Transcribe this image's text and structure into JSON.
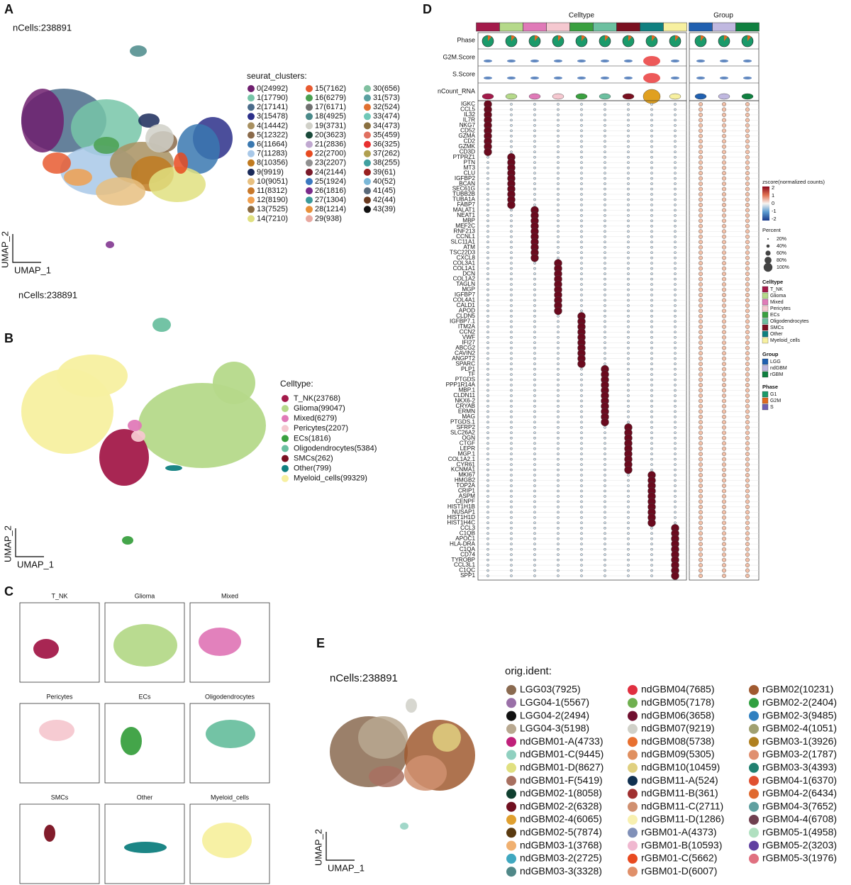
{
  "A": {
    "label": "A",
    "ncells": "nCells:238891",
    "y_axis": "UMAP_2",
    "x_axis": "UMAP_1",
    "legend_title": "seurat_clusters:",
    "items": [
      {
        "label": "0(24992)",
        "color": "#6f1f6f"
      },
      {
        "label": "1(17790)",
        "color": "#77c5a8"
      },
      {
        "label": "2(17141)",
        "color": "#4a6b8a"
      },
      {
        "label": "3(15478)",
        "color": "#2b2f8a"
      },
      {
        "label": "4(14442)",
        "color": "#a89060"
      },
      {
        "label": "5(12322)",
        "color": "#8a6a4a"
      },
      {
        "label": "6(11664)",
        "color": "#3a78b0"
      },
      {
        "label": "7(11283)",
        "color": "#a8c8e8"
      },
      {
        "label": "8(10356)",
        "color": "#c07a20"
      },
      {
        "label": "9(9919)",
        "color": "#1a2a5a"
      },
      {
        "label": "10(9051)",
        "color": "#e8c080"
      },
      {
        "label": "11(8312)",
        "color": "#c8782a"
      },
      {
        "label": "12(8190)",
        "color": "#f0a050"
      },
      {
        "label": "13(7525)",
        "color": "#8a6a40"
      },
      {
        "label": "14(7210)",
        "color": "#e0e080"
      },
      {
        "label": "15(7162)",
        "color": "#e85a30"
      },
      {
        "label": "16(6279)",
        "color": "#4aa050"
      },
      {
        "label": "17(6171)",
        "color": "#707070"
      },
      {
        "label": "18(4925)",
        "color": "#4a8a8a"
      },
      {
        "label": "19(3731)",
        "color": "#d0d0c8"
      },
      {
        "label": "20(3623)",
        "color": "#1a4a3a"
      },
      {
        "label": "21(2836)",
        "color": "#c0a8d0"
      },
      {
        "label": "22(2700)",
        "color": "#e84a20"
      },
      {
        "label": "23(2207)",
        "color": "#909090"
      },
      {
        "label": "24(2144)",
        "color": "#7a1a2a"
      },
      {
        "label": "25(1924)",
        "color": "#3a78c0"
      },
      {
        "label": "26(1816)",
        "color": "#7a2a8a"
      },
      {
        "label": "27(1304)",
        "color": "#3a9a9a"
      },
      {
        "label": "28(1214)",
        "color": "#e8903a"
      },
      {
        "label": "29(938)",
        "color": "#e8a8a0"
      },
      {
        "label": "30(656)",
        "color": "#80c0a0"
      },
      {
        "label": "31(573)",
        "color": "#5aa0a0"
      },
      {
        "label": "32(524)",
        "color": "#e07030"
      },
      {
        "label": "33(474)",
        "color": "#70c8b8"
      },
      {
        "label": "34(473)",
        "color": "#8a7040"
      },
      {
        "label": "35(459)",
        "color": "#e07060"
      },
      {
        "label": "36(325)",
        "color": "#e83030"
      },
      {
        "label": "37(262)",
        "color": "#b0a050"
      },
      {
        "label": "38(255)",
        "color": "#40a0a0"
      },
      {
        "label": "39(61)",
        "color": "#9a2020"
      },
      {
        "label": "40(52)",
        "color": "#7ab8d8"
      },
      {
        "label": "41(45)",
        "color": "#5a6a7a"
      },
      {
        "label": "42(44)",
        "color": "#6a3a20"
      },
      {
        "label": "43(39)",
        "color": "#111111"
      }
    ]
  },
  "B": {
    "label": "B",
    "ncells": "nCells:238891",
    "y_axis": "UMAP_2",
    "x_axis": "UMAP_1",
    "legend_title": "Celltype:",
    "items": [
      {
        "label": "T_NK(23768)",
        "color": "#a31a4a"
      },
      {
        "label": "Glioma(99047)",
        "color": "#b5d98a"
      },
      {
        "label": "Mixed(6279)",
        "color": "#e07ab8"
      },
      {
        "label": "Pericytes(2207)",
        "color": "#f5c8d0"
      },
      {
        "label": "ECs(1816)",
        "color": "#3aa040"
      },
      {
        "label": "Oligodendrocytes(5384)",
        "color": "#6cc0a0"
      },
      {
        "label": "SMCs(262)",
        "color": "#7a1020"
      },
      {
        "label": "Other(799)",
        "color": "#108080"
      },
      {
        "label": "Myeloid_cells(99329)",
        "color": "#f7f0a0"
      }
    ]
  },
  "C": {
    "label": "C",
    "facets": [
      "T_NK",
      "Glioma",
      "Mixed",
      "Pericytes",
      "ECs",
      "Oligodendrocytes",
      "SMCs",
      "Other",
      "Myeloid_cells"
    ]
  },
  "D": {
    "label": "D",
    "celltype_header": "Celltype",
    "group_header": "Group",
    "rows": [
      "Phase",
      "G2M.Score",
      "S.Score",
      "nCount_RNA"
    ],
    "celltypes": [
      "T_NK",
      "Glioma",
      "Mixed",
      "Pericytes",
      "ECs",
      "Oligodendrocytes",
      "SMCs",
      "Other",
      "Myeloid_cells"
    ],
    "celltype_colors": [
      "#a31a4a",
      "#b5d98a",
      "#e07ab8",
      "#f5c8d0",
      "#3aa040",
      "#6cc0a0",
      "#7a1020",
      "#108080",
      "#f7f0a0"
    ],
    "groups": [
      "LGG",
      "ndGBM",
      "rGBM"
    ],
    "group_colors": [
      "#2060b0",
      "#c0b8e0",
      "#108040"
    ],
    "phases": [
      "G1",
      "G2M",
      "S"
    ],
    "phase_colors": [
      "#1a9a6a",
      "#e06a20",
      "#7060b0"
    ],
    "zscore_title": "zscore(normalized counts)",
    "zscore_ticks": [
      "2",
      "1",
      "0",
      "-1",
      "-2"
    ],
    "percent_title": "Percent",
    "percent_ticks": [
      "20%",
      "40%",
      "60%",
      "80%",
      "100%"
    ],
    "celltype_legend": "Celltype",
    "group_legend": "Group",
    "phase_legend": "Phase",
    "genes": [
      {
        "label": "IGKC",
        "top": 0
      },
      {
        "label": "CCL5",
        "top": 0
      },
      {
        "label": "IL32",
        "top": 0
      },
      {
        "label": "IL7R",
        "top": 0
      },
      {
        "label": "NKG7",
        "top": 0
      },
      {
        "label": "CD52",
        "top": 0
      },
      {
        "label": "GZMA",
        "top": 0
      },
      {
        "label": "CD2",
        "top": 0
      },
      {
        "label": "GZMK",
        "top": 0
      },
      {
        "label": "CD3D",
        "top": 0
      },
      {
        "label": "PTPRZ1",
        "top": 1
      },
      {
        "label": "PTN",
        "top": 1
      },
      {
        "label": "MT3",
        "top": 1
      },
      {
        "label": "CLU",
        "top": 1
      },
      {
        "label": "IGFBP2",
        "top": 1
      },
      {
        "label": "BCAN",
        "top": 1
      },
      {
        "label": "SEC61G",
        "top": 1
      },
      {
        "label": "TUBB2B",
        "top": 1
      },
      {
        "label": "TUBA1A",
        "top": 1
      },
      {
        "label": "FABP7",
        "top": 1
      },
      {
        "label": "MALAT1",
        "top": 2
      },
      {
        "label": "NEAT1",
        "top": 2
      },
      {
        "label": "MBP",
        "top": 2
      },
      {
        "label": "MEF2C",
        "top": 2
      },
      {
        "label": "RNF213",
        "top": 2
      },
      {
        "label": "CCNL1",
        "top": 2
      },
      {
        "label": "SLC11A1",
        "top": 2
      },
      {
        "label": "ATM",
        "top": 2
      },
      {
        "label": "TSC22D3",
        "top": 2
      },
      {
        "label": "CXCL8",
        "top": 2
      },
      {
        "label": "COL3A1",
        "top": 3
      },
      {
        "label": "COL1A1",
        "top": 3
      },
      {
        "label": "DCN",
        "top": 3
      },
      {
        "label": "COL1A2",
        "top": 3
      },
      {
        "label": "TAGLN",
        "top": 3
      },
      {
        "label": "MGP",
        "top": 3
      },
      {
        "label": "IGFBP7",
        "top": 3
      },
      {
        "label": "COL4A1",
        "top": 3
      },
      {
        "label": "CALD1",
        "top": 3
      },
      {
        "label": "APOD",
        "top": 3
      },
      {
        "label": "CLDN5",
        "top": 4
      },
      {
        "label": "IGFBP7.1",
        "top": 4
      },
      {
        "label": "ITM2A",
        "top": 4
      },
      {
        "label": "CCN2",
        "top": 4
      },
      {
        "label": "VWF",
        "top": 4
      },
      {
        "label": "IFI27",
        "top": 4
      },
      {
        "label": "ABCG2",
        "top": 4
      },
      {
        "label": "CAVIN2",
        "top": 4
      },
      {
        "label": "ANGPT2",
        "top": 4
      },
      {
        "label": "SPARC",
        "top": 4
      },
      {
        "label": "PLP1",
        "top": 5
      },
      {
        "label": "TF",
        "top": 5
      },
      {
        "label": "PTGDS",
        "top": 5
      },
      {
        "label": "PPP1R14A",
        "top": 5
      },
      {
        "label": "MBP.1",
        "top": 5
      },
      {
        "label": "CLDN11",
        "top": 5
      },
      {
        "label": "NKX6-2",
        "top": 5
      },
      {
        "label": "CRYAB",
        "top": 5
      },
      {
        "label": "ERMN",
        "top": 5
      },
      {
        "label": "MAG",
        "top": 5
      },
      {
        "label": "PTGDS.1",
        "top": 5
      },
      {
        "label": "SFRP2",
        "top": 6
      },
      {
        "label": "SLC26A2",
        "top": 6
      },
      {
        "label": "OGN",
        "top": 6
      },
      {
        "label": "CTGF",
        "top": 6
      },
      {
        "label": "LEPR",
        "top": 6
      },
      {
        "label": "MGP.1",
        "top": 6
      },
      {
        "label": "COL1A2.1",
        "top": 6
      },
      {
        "label": "CYR61",
        "top": 6
      },
      {
        "label": "KCNMA1",
        "top": 6
      },
      {
        "label": "MKI67",
        "top": 7
      },
      {
        "label": "HMGB2",
        "top": 7
      },
      {
        "label": "TOP2A",
        "top": 7
      },
      {
        "label": "CRIP1",
        "top": 7
      },
      {
        "label": "ASPM",
        "top": 7
      },
      {
        "label": "CENPF",
        "top": 7
      },
      {
        "label": "HIST1H1B",
        "top": 7
      },
      {
        "label": "NUSAP1",
        "top": 7
      },
      {
        "label": "HIST1H1D",
        "top": 7
      },
      {
        "label": "HIST1H4C",
        "top": 7
      },
      {
        "label": "CCL3",
        "top": 8
      },
      {
        "label": "C1QB",
        "top": 8
      },
      {
        "label": "APOC1",
        "top": 8
      },
      {
        "label": "HLA-DRA",
        "top": 8
      },
      {
        "label": "C1QA",
        "top": 8
      },
      {
        "label": "CD74",
        "top": 8
      },
      {
        "label": "TYROBP",
        "top": 8
      },
      {
        "label": "CCL3L1",
        "top": 8
      },
      {
        "label": "C1QC",
        "top": 8
      },
      {
        "label": "SPP1",
        "top": 8
      }
    ]
  },
  "E": {
    "label": "E",
    "ncells": "nCells:238891",
    "y_axis": "UMAP_2",
    "x_axis": "UMAP_1",
    "legend_title": "orig.ident:",
    "items": [
      {
        "label": "LGG03(7925)",
        "color": "#8a6a50"
      },
      {
        "label": "LGG04-1(5567)",
        "color": "#9a70a8"
      },
      {
        "label": "LGG04-2(2494)",
        "color": "#111111"
      },
      {
        "label": "LGG04-3(5198)",
        "color": "#b8a890"
      },
      {
        "label": "ndGBM01-A(4733)",
        "color": "#c0207a"
      },
      {
        "label": "ndGBM01-C(9445)",
        "color": "#90d0c0"
      },
      {
        "label": "ndGBM01-D(8627)",
        "color": "#e0e080"
      },
      {
        "label": "ndGBM01-F(5419)",
        "color": "#a87060"
      },
      {
        "label": "ndGBM02-1(8058)",
        "color": "#104030"
      },
      {
        "label": "ndGBM02-2(6328)",
        "color": "#701020"
      },
      {
        "label": "ndGBM02-4(6065)",
        "color": "#e0a030"
      },
      {
        "label": "ndGBM02-5(7874)",
        "color": "#5a3a10"
      },
      {
        "label": "ndGBM03-1(3768)",
        "color": "#f0b070"
      },
      {
        "label": "ndGBM03-2(2725)",
        "color": "#40a8c0"
      },
      {
        "label": "ndGBM03-3(3328)",
        "color": "#508888"
      },
      {
        "label": "ndGBM04(7685)",
        "color": "#e03040"
      },
      {
        "label": "ndGBM05(7178)",
        "color": "#70b050"
      },
      {
        "label": "ndGBM06(3658)",
        "color": "#701030"
      },
      {
        "label": "ndGBM07(9219)",
        "color": "#d0d0c8"
      },
      {
        "label": "ndGBM08(5738)",
        "color": "#e87030"
      },
      {
        "label": "ndGBM09(5305)",
        "color": "#e09060"
      },
      {
        "label": "ndGBM10(10459)",
        "color": "#e0d080"
      },
      {
        "label": "ndGBM11-A(524)",
        "color": "#103050"
      },
      {
        "label": "ndGBM11-B(361)",
        "color": "#a03030"
      },
      {
        "label": "ndGBM11-C(2711)",
        "color": "#d09070"
      },
      {
        "label": "ndGBM11-D(1286)",
        "color": "#f8f0b0"
      },
      {
        "label": "rGBM01-A(4373)",
        "color": "#8090b8"
      },
      {
        "label": "rGBM01-B(10593)",
        "color": "#f0b8d0"
      },
      {
        "label": "rGBM01-C(5662)",
        "color": "#e84a20"
      },
      {
        "label": "rGBM01-D(6007)",
        "color": "#e0906a"
      },
      {
        "label": "rGBM02(10231)",
        "color": "#a05a30"
      },
      {
        "label": "rGBM02-2(2404)",
        "color": "#30a040"
      },
      {
        "label": "rGBM02-3(9485)",
        "color": "#3080c0"
      },
      {
        "label": "rGBM02-4(1051)",
        "color": "#a0a070"
      },
      {
        "label": "rGBM03-1(3926)",
        "color": "#b08020"
      },
      {
        "label": "rGBM03-2(1787)",
        "color": "#e09070"
      },
      {
        "label": "rGBM03-3(4393)",
        "color": "#208070"
      },
      {
        "label": "rGBM04-1(6370)",
        "color": "#e05030"
      },
      {
        "label": "rGBM04-2(6434)",
        "color": "#e06a30"
      },
      {
        "label": "rGBM04-3(7652)",
        "color": "#60a0a0"
      },
      {
        "label": "rGBM04-4(6708)",
        "color": "#704050"
      },
      {
        "label": "rGBM05-1(4958)",
        "color": "#b0e0c0"
      },
      {
        "label": "rGBM05-2(3203)",
        "color": "#6040a0"
      },
      {
        "label": "rGBM05-3(1976)",
        "color": "#e07080"
      }
    ]
  }
}
